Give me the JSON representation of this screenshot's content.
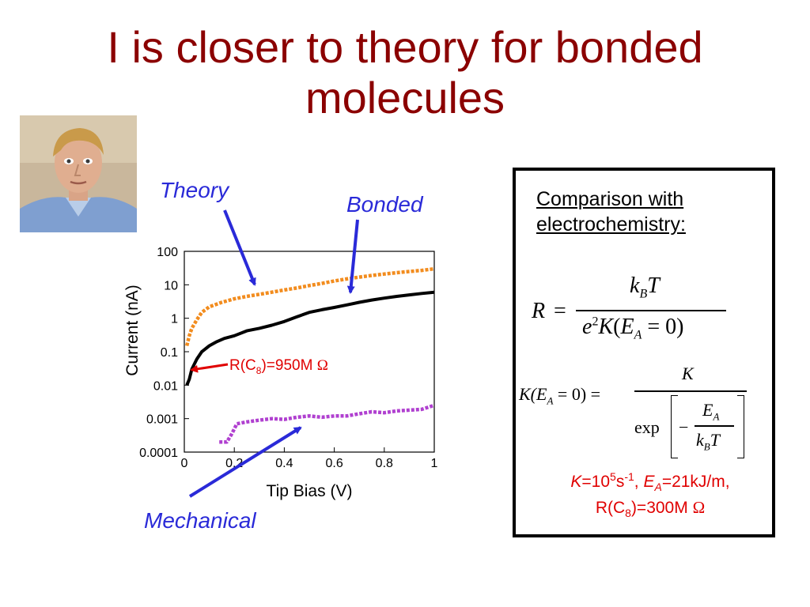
{
  "slide": {
    "title": "I is closer to theory for bonded molecules"
  },
  "photo": {
    "description_icon": "portrait-photo"
  },
  "callouts": {
    "theory": "Theory",
    "bonded": "Bonded",
    "mechanical": "Mechanical",
    "resistance_annotation": {
      "prefix": "R(C",
      "sub": "8",
      "suffix": ")=950M ",
      "omega": "Ω"
    }
  },
  "colors": {
    "title": "#8b0000",
    "callout_text": "#2a2ad8",
    "theory_series": "#f28c1e",
    "bonded_series": "#000000",
    "mechanical_series": "#b040d0",
    "annotation_red": "#e00000"
  },
  "chart_data": {
    "type": "line",
    "xlabel": "Tip Bias (V)",
    "ylabel": "Current (nA)",
    "xlim": [
      0,
      1
    ],
    "ylim": [
      0.0001,
      100
    ],
    "yscale": "log",
    "x_ticks": [
      "0",
      "0.2",
      "0.4",
      "0.6",
      "0.8",
      "1"
    ],
    "y_ticks": [
      "0.0001",
      "0.001",
      "0.01",
      "0.1",
      "1",
      "10",
      "100"
    ],
    "x_tick_values": [
      0,
      0.2,
      0.4,
      0.6,
      0.8,
      1
    ],
    "y_tick_values": [
      0.0001,
      0.001,
      0.01,
      0.1,
      1,
      10,
      100
    ],
    "grid": false,
    "series": [
      {
        "name": "Theory",
        "style": "dotted",
        "x": [
          0.01,
          0.02,
          0.03,
          0.05,
          0.07,
          0.1,
          0.15,
          0.2,
          0.25,
          0.3,
          0.35,
          0.4,
          0.45,
          0.5,
          0.55,
          0.6,
          0.65,
          0.7,
          0.75,
          0.8,
          0.85,
          0.9,
          0.95,
          1.0
        ],
        "values": [
          0.15,
          0.3,
          0.5,
          0.9,
          1.5,
          2.2,
          3.0,
          3.8,
          4.5,
          5.2,
          6.0,
          7.0,
          8.0,
          9.5,
          11,
          13,
          15,
          17,
          19,
          21,
          23,
          25,
          27,
          30
        ]
      },
      {
        "name": "Bonded",
        "style": "solid",
        "x": [
          0.01,
          0.02,
          0.03,
          0.05,
          0.07,
          0.1,
          0.13,
          0.16,
          0.2,
          0.25,
          0.3,
          0.35,
          0.4,
          0.45,
          0.5,
          0.55,
          0.6,
          0.65,
          0.7,
          0.75,
          0.8,
          0.85,
          0.9,
          0.95,
          1.0
        ],
        "values": [
          0.01,
          0.015,
          0.03,
          0.06,
          0.1,
          0.15,
          0.2,
          0.25,
          0.3,
          0.42,
          0.5,
          0.62,
          0.8,
          1.1,
          1.5,
          1.8,
          2.1,
          2.5,
          3.0,
          3.5,
          4.0,
          4.5,
          5.0,
          5.5,
          6.0
        ]
      },
      {
        "name": "Mechanical",
        "style": "dotted",
        "x": [
          0.14,
          0.17,
          0.19,
          0.21,
          0.25,
          0.3,
          0.35,
          0.4,
          0.45,
          0.5,
          0.55,
          0.6,
          0.65,
          0.7,
          0.75,
          0.8,
          0.85,
          0.9,
          0.95,
          1.0
        ],
        "values": [
          0.0002,
          0.0002,
          0.00035,
          0.0007,
          0.0008,
          0.0009,
          0.001,
          0.00095,
          0.0011,
          0.0012,
          0.0011,
          0.0012,
          0.0012,
          0.0014,
          0.0016,
          0.0015,
          0.0017,
          0.0018,
          0.0019,
          0.0025
        ]
      }
    ]
  },
  "panel": {
    "heading": "Comparison with electrochemistry:",
    "eq1": {
      "lhs": "R",
      "eq": "=",
      "num_k": "k",
      "num_sub": "B",
      "num_T": "T",
      "den_e": "e",
      "den_sup": "2",
      "den_K": "K",
      "den_paren_open": "(",
      "den_E": "E",
      "den_sub": "A",
      "den_rest": " = 0)"
    },
    "eq2": {
      "lhs": "K(E",
      "lhs_sub": "A",
      "lhs_rest": " = 0) =",
      "num": "K",
      "exp": "exp",
      "minus": "−",
      "inner_num_E": "E",
      "inner_num_sub": "A",
      "inner_den_k": "k",
      "inner_den_sub": "B",
      "inner_den_T": "T"
    },
    "params": {
      "k_label": "K",
      "k_value": "=10",
      "k_exp": "5",
      "k_unit": "s",
      "k_unit_exp": "-1",
      "sep": ", ",
      "ea_label": "E",
      "ea_sub": "A",
      "ea_value": "=21kJ/m,",
      "r_prefix": "R(C",
      "r_sub": "8",
      "r_suffix": ")=300M ",
      "r_omega": "Ω"
    }
  }
}
